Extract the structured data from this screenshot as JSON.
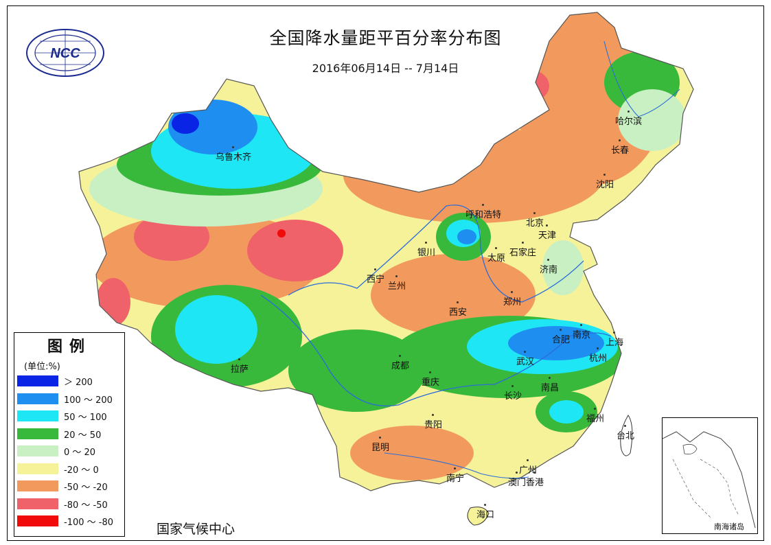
{
  "title": "全国降水量距平百分率分布图",
  "date_range": "2016年06月14日 -- 7月14日",
  "logo_text": "NCC",
  "credit": "国家气候中心",
  "legend": {
    "title": "图例",
    "unit": "(单位:%)",
    "items": [
      {
        "label": "＞ 200",
        "color": "#0a24e6"
      },
      {
        "label": "100 ～ 200",
        "color": "#1e8ef0"
      },
      {
        "label": "50 ～ 100",
        "color": "#1ee6f5"
      },
      {
        "label": "20 ～ 50",
        "color": "#39b93c"
      },
      {
        "label": "0 ～ 20",
        "color": "#c8f0c3"
      },
      {
        "label": "-20 ～ 0",
        "color": "#f5f29a"
      },
      {
        "label": "-50 ～ -20",
        "color": "#f29a5e"
      },
      {
        "label": "-80 ～ -50",
        "color": "#f0626a"
      },
      {
        "label": "-100 ～ -80",
        "color": "#f00a0a"
      }
    ]
  },
  "inset_label": "南海诸岛",
  "cities": [
    {
      "name": "乌鲁木齐"
    },
    {
      "name": "哈尔滨"
    },
    {
      "name": "长春"
    },
    {
      "name": "沈阳"
    },
    {
      "name": "呼和浩特"
    },
    {
      "name": "北京"
    },
    {
      "name": "天津"
    },
    {
      "name": "银川"
    },
    {
      "name": "石家庄"
    },
    {
      "name": "太原"
    },
    {
      "name": "济南"
    },
    {
      "name": "西宁"
    },
    {
      "name": "兰州"
    },
    {
      "name": "郑州"
    },
    {
      "name": "西安"
    },
    {
      "name": "南京"
    },
    {
      "name": "合肥"
    },
    {
      "name": "上海"
    },
    {
      "name": "杭州"
    },
    {
      "name": "拉萨"
    },
    {
      "name": "成都"
    },
    {
      "name": "武汉"
    },
    {
      "name": "重庆"
    },
    {
      "name": "南昌"
    },
    {
      "name": "长沙"
    },
    {
      "name": "福州"
    },
    {
      "name": "贵阳"
    },
    {
      "name": "台北"
    },
    {
      "name": "昆明"
    },
    {
      "name": "广州"
    },
    {
      "name": "南宁"
    },
    {
      "name": "澳门"
    },
    {
      "name": "香港"
    },
    {
      "name": "海口"
    }
  ]
}
